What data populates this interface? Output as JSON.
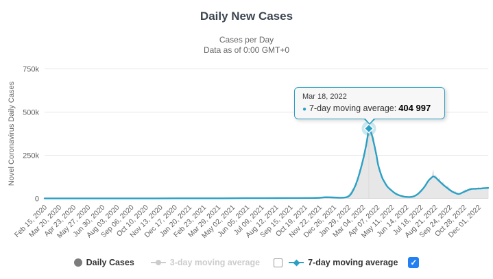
{
  "header": {
    "title": "Daily New Cases",
    "subtitle_line1": "Cases per Day",
    "subtitle_line2": "Data as of 0:00 GMT+0"
  },
  "tooltip": {
    "date": "Mar 18, 2022",
    "series_label": "7-day moving average:",
    "value_display": "404 997"
  },
  "legend": {
    "items": [
      {
        "label": "Daily Cases",
        "marker": "circle",
        "color": "#7c7c7c",
        "enabled": true,
        "checkbox": null
      },
      {
        "label": "3-day moving average",
        "marker": "line-circle",
        "color": "#cccccc",
        "enabled": false,
        "checkbox": "unchecked"
      },
      {
        "label": "7-day moving average",
        "marker": "line-diamond",
        "color": "#2ba0c4",
        "enabled": true,
        "checkbox": "checked"
      }
    ]
  },
  "icons": {
    "check": "✓"
  },
  "colors": {
    "accent_teal": "#2ba0c4",
    "daily_area_fill": "#e7e7e7",
    "daily_area_stroke": "#dcdcdc",
    "disabled_legend": "#cccccc",
    "checkbox_checked_blue": "#2380f2",
    "grid_line": "#e6e6e6",
    "axis_line": "#d6d6d6",
    "crosshair": "#cccccc",
    "text_dark": "#333333",
    "text_gray": "#666666",
    "title_color": "#3b4450"
  },
  "chart_data": {
    "type": "line",
    "title": "Daily New Cases",
    "subtitle": [
      "Cases per Day",
      "Data as of 0:00 GMT+0"
    ],
    "ylabel": "Novel Coronavirus Daily Cases",
    "xlabel": "",
    "ylim": [
      0,
      750000
    ],
    "grid": "horizontal",
    "legend_position": "bottom",
    "y_ticks": [
      {
        "value": 0,
        "label": "0"
      },
      {
        "value": 250000,
        "label": "250k"
      },
      {
        "value": 500000,
        "label": "500k"
      },
      {
        "value": 750000,
        "label": "750k"
      }
    ],
    "x_tick_labels": [
      "Feb 15, 2020",
      "Mar 20, 2020",
      "Apr 23, 2020",
      "May 27, 2020",
      "Jun 30, 2020",
      "Aug 03, 2020",
      "Sep 06, 2020",
      "Oct 10, 2020",
      "Nov 13, 2020",
      "Dec 17, 2020",
      "Jan 20, 2021",
      "Feb 23, 2021",
      "Mar 29, 2021",
      "May 02, 2021",
      "Jun 05, 2021",
      "Jul 09, 2021",
      "Aug 12, 2021",
      "Sep 15, 2021",
      "Oct 19, 2021",
      "Nov 22, 2021",
      "Dec 26, 2021",
      "Jan 29, 2022",
      "Mar 04, 2022",
      "Apr 07, 2022",
      "May 11, 2022",
      "Jun 14, 2022",
      "Jul 18, 2022",
      "Aug 21, 2022",
      "Sep 24, 2022",
      "Oct 28, 2022",
      "Dec 01, 2022"
    ],
    "x_unit": "fraction of x-axis, 0 = Feb 15 2020 tick, 1 = right edge (~mid-Dec 2022)",
    "highlight": {
      "t": 0.731,
      "value": 404997,
      "value_display": "404 997",
      "date": "Mar 18, 2022",
      "series": "7-day moving average"
    },
    "series": [
      {
        "name": "Daily Cases",
        "type": "area",
        "color": "#e7e7e7",
        "visible": true,
        "points": [
          [
            0.0,
            0
          ],
          [
            0.02,
            300
          ],
          [
            0.05,
            200
          ],
          [
            0.1,
            400
          ],
          [
            0.15,
            300
          ],
          [
            0.2,
            500
          ],
          [
            0.25,
            400
          ],
          [
            0.3,
            700
          ],
          [
            0.35,
            600
          ],
          [
            0.4,
            900
          ],
          [
            0.45,
            1500
          ],
          [
            0.5,
            1800
          ],
          [
            0.55,
            2500
          ],
          [
            0.58,
            2200
          ],
          [
            0.6,
            3000
          ],
          [
            0.62,
            4500
          ],
          [
            0.634,
            7500
          ],
          [
            0.65,
            6500
          ],
          [
            0.66,
            5000
          ],
          [
            0.67,
            4200
          ],
          [
            0.675,
            6000
          ],
          [
            0.681,
            12000
          ],
          [
            0.686,
            22000
          ],
          [
            0.69,
            35000
          ],
          [
            0.694,
            55000
          ],
          [
            0.698,
            50000
          ],
          [
            0.702,
            95000
          ],
          [
            0.706,
            80000
          ],
          [
            0.71,
            170000
          ],
          [
            0.713,
            140000
          ],
          [
            0.716,
            210000
          ],
          [
            0.719,
            260000
          ],
          [
            0.722,
            230000
          ],
          [
            0.725,
            330000
          ],
          [
            0.728,
            300000
          ],
          [
            0.73,
            395000
          ],
          [
            0.7315,
            350000
          ],
          [
            0.733,
            400000
          ],
          [
            0.735,
            365000
          ],
          [
            0.737,
            385000
          ],
          [
            0.739,
            330000
          ],
          [
            0.742,
            360000
          ],
          [
            0.744,
            300000
          ],
          [
            0.747,
            270000
          ],
          [
            0.75,
            230000
          ],
          [
            0.753,
            190000
          ],
          [
            0.757,
            155000
          ],
          [
            0.76,
            125000
          ],
          [
            0.764,
            105000
          ],
          [
            0.768,
            85000
          ],
          [
            0.772,
            70000
          ],
          [
            0.777,
            58000
          ],
          [
            0.782,
            45000
          ],
          [
            0.788,
            32000
          ],
          [
            0.796,
            22000
          ],
          [
            0.804,
            14000
          ],
          [
            0.811,
            10000
          ],
          [
            0.818,
            8500
          ],
          [
            0.825,
            8000
          ],
          [
            0.832,
            12000
          ],
          [
            0.841,
            26000
          ],
          [
            0.848,
            42000
          ],
          [
            0.852,
            38000
          ],
          [
            0.856,
            72000
          ],
          [
            0.86,
            62000
          ],
          [
            0.865,
            110000
          ],
          [
            0.869,
            90000
          ],
          [
            0.873,
            125000
          ],
          [
            0.876,
            163000
          ],
          [
            0.879,
            110000
          ],
          [
            0.882,
            135000
          ],
          [
            0.886,
            100000
          ],
          [
            0.89,
            118000
          ],
          [
            0.894,
            82000
          ],
          [
            0.898,
            95000
          ],
          [
            0.904,
            62000
          ],
          [
            0.909,
            74000
          ],
          [
            0.914,
            48000
          ],
          [
            0.92,
            36000
          ],
          [
            0.925,
            44000
          ],
          [
            0.93,
            26000
          ],
          [
            0.934,
            30000
          ],
          [
            0.938,
            22000
          ],
          [
            0.943,
            40000
          ],
          [
            0.949,
            52000
          ],
          [
            0.953,
            36000
          ],
          [
            0.958,
            58000
          ],
          [
            0.963,
            44000
          ],
          [
            0.968,
            60000
          ],
          [
            0.972,
            48000
          ],
          [
            0.978,
            64000
          ],
          [
            0.983,
            50000
          ],
          [
            0.988,
            66000
          ],
          [
            0.993,
            54000
          ],
          [
            1.0,
            62000
          ]
        ]
      },
      {
        "name": "3-day moving average",
        "type": "line",
        "color": "#cccccc",
        "visible": false,
        "points": []
      },
      {
        "name": "7-day moving average",
        "type": "line",
        "color": "#2ba0c4",
        "visible": true,
        "points": [
          [
            0.0,
            200
          ],
          [
            0.05,
            300
          ],
          [
            0.1,
            350
          ],
          [
            0.15,
            300
          ],
          [
            0.2,
            450
          ],
          [
            0.25,
            420
          ],
          [
            0.3,
            600
          ],
          [
            0.35,
            650
          ],
          [
            0.4,
            900
          ],
          [
            0.45,
            1400
          ],
          [
            0.5,
            1700
          ],
          [
            0.55,
            2300
          ],
          [
            0.6,
            2800
          ],
          [
            0.62,
            4000
          ],
          [
            0.634,
            7000
          ],
          [
            0.65,
            6000
          ],
          [
            0.665,
            4500
          ],
          [
            0.675,
            5200
          ],
          [
            0.683,
            9000
          ],
          [
            0.688,
            18000
          ],
          [
            0.693,
            35000
          ],
          [
            0.698,
            60000
          ],
          [
            0.703,
            90000
          ],
          [
            0.708,
            130000
          ],
          [
            0.713,
            175000
          ],
          [
            0.717,
            215000
          ],
          [
            0.721,
            260000
          ],
          [
            0.725,
            310000
          ],
          [
            0.728,
            355000
          ],
          [
            0.731,
            404997
          ],
          [
            0.734,
            390000
          ],
          [
            0.737,
            375000
          ],
          [
            0.74,
            345000
          ],
          [
            0.744,
            300000
          ],
          [
            0.748,
            250000
          ],
          [
            0.752,
            195000
          ],
          [
            0.757,
            150000
          ],
          [
            0.762,
            115000
          ],
          [
            0.767,
            92000
          ],
          [
            0.773,
            68000
          ],
          [
            0.782,
            46000
          ],
          [
            0.79,
            30000
          ],
          [
            0.796,
            22000
          ],
          [
            0.804,
            14500
          ],
          [
            0.811,
            10500
          ],
          [
            0.818,
            8800
          ],
          [
            0.825,
            8600
          ],
          [
            0.833,
            13000
          ],
          [
            0.841,
            25000
          ],
          [
            0.849,
            45000
          ],
          [
            0.857,
            70000
          ],
          [
            0.864,
            98000
          ],
          [
            0.87,
            115000
          ],
          [
            0.876,
            127000
          ],
          [
            0.882,
            120000
          ],
          [
            0.888,
            105000
          ],
          [
            0.894,
            90000
          ],
          [
            0.9,
            76000
          ],
          [
            0.906,
            64000
          ],
          [
            0.913,
            50000
          ],
          [
            0.92,
            38000
          ],
          [
            0.927,
            30000
          ],
          [
            0.934,
            26000
          ],
          [
            0.941,
            33000
          ],
          [
            0.949,
            42000
          ],
          [
            0.956,
            50000
          ],
          [
            0.963,
            55000
          ],
          [
            0.97,
            56000
          ],
          [
            0.978,
            57000
          ],
          [
            0.985,
            58000
          ],
          [
            0.992,
            60000
          ],
          [
            1.0,
            61000
          ]
        ]
      }
    ]
  }
}
